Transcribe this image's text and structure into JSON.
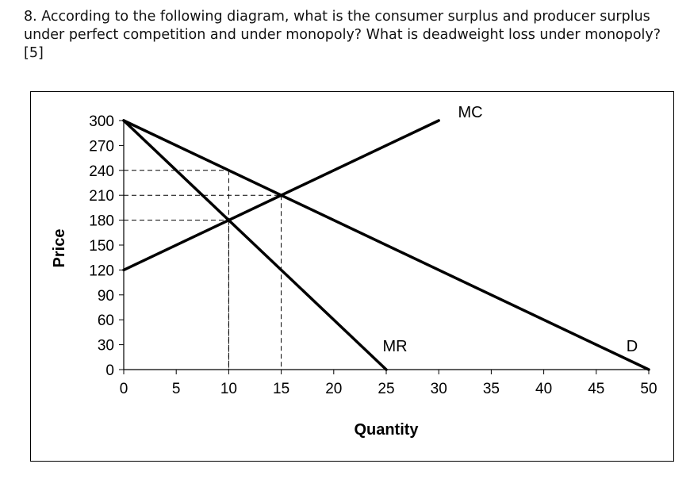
{
  "question": {
    "line1": "8. According to the following diagram, what is the consumer surplus and producer surplus",
    "line2": "under perfect competition and under monopoly? What is deadweight loss under monopoly?",
    "line3": "[5]"
  },
  "chart_data": {
    "type": "line",
    "title": "",
    "xlabel": "Quantity",
    "ylabel": "Price",
    "xlim": [
      0,
      50
    ],
    "ylim": [
      0,
      300
    ],
    "x_ticks": [
      "0",
      "5",
      "10",
      "15",
      "20",
      "25",
      "30",
      "35",
      "40",
      "45",
      "50"
    ],
    "y_ticks": [
      "0",
      "30",
      "60",
      "90",
      "120",
      "150",
      "180",
      "210",
      "240",
      "270",
      "300"
    ],
    "grid": false,
    "series": [
      {
        "name": "D",
        "x": [
          0,
          50
        ],
        "y": [
          300,
          0
        ]
      },
      {
        "name": "MR",
        "x": [
          0,
          25
        ],
        "y": [
          300,
          0
        ]
      },
      {
        "name": "MC",
        "x": [
          0,
          30
        ],
        "y": [
          120,
          300
        ]
      }
    ],
    "reference_lines": [
      {
        "x": 10,
        "y": 240
      },
      {
        "x": 10,
        "y": 180
      },
      {
        "x": 15,
        "y": 210
      }
    ]
  }
}
